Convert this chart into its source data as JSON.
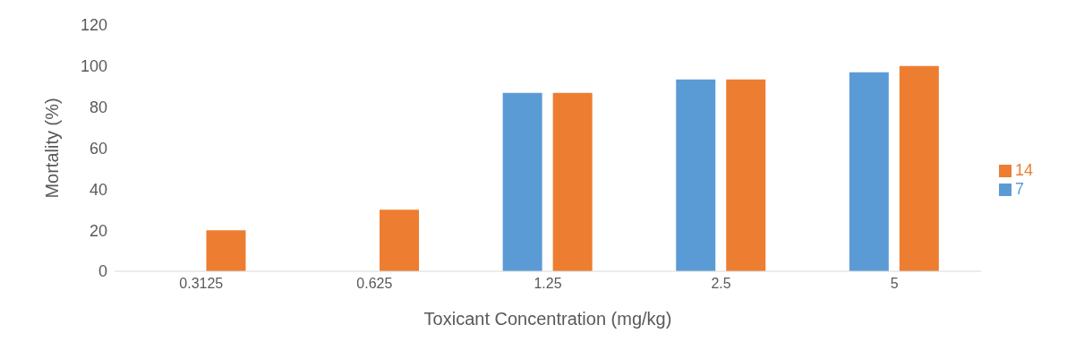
{
  "chart_data": {
    "type": "bar",
    "xlabel": "Toxicant Concentration (mg/kg)",
    "ylabel": "Mortality (%)",
    "categories": [
      "0.3125",
      "0.625",
      "1.25",
      "2.5",
      "5"
    ],
    "series": [
      {
        "name": "7",
        "color": "#5b9bd5",
        "values": [
          0,
          0,
          87,
          93.5,
          97
        ]
      },
      {
        "name": "14",
        "color": "#ed7d31",
        "values": [
          20,
          30,
          87,
          93.5,
          100
        ]
      }
    ],
    "ylim": [
      0,
      120
    ],
    "yticks": [
      0,
      20,
      40,
      60,
      80,
      100,
      120
    ],
    "grid": false,
    "legend": "right"
  }
}
